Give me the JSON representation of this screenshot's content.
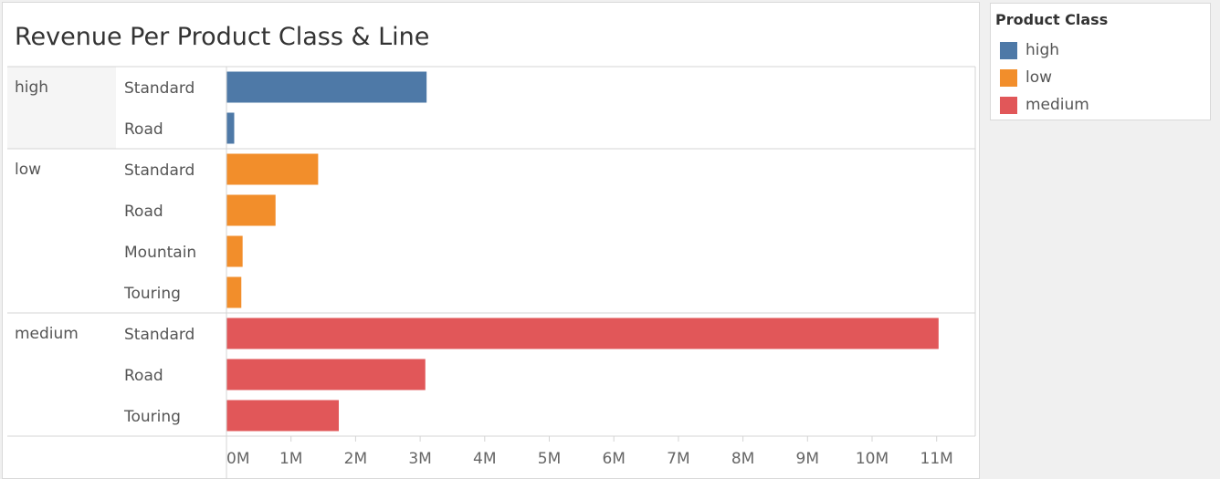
{
  "title": "Revenue Per Product Class & Line",
  "legend": {
    "title": "Product Class",
    "items": [
      {
        "label": "high",
        "color": "#4e79a7"
      },
      {
        "label": "low",
        "color": "#f28e2b"
      },
      {
        "label": "medium",
        "color": "#e15759"
      }
    ]
  },
  "chart_data": {
    "type": "bar",
    "orientation": "horizontal",
    "title": "Revenue Per Product Class & Line",
    "xlabel": "",
    "ylabel": "",
    "xlim": [
      0,
      11.5
    ],
    "x_unit_suffix": "M",
    "ticks": [
      "0M",
      "1M",
      "2M",
      "3M",
      "4M",
      "5M",
      "6M",
      "7M",
      "8M",
      "9M",
      "10M",
      "11M"
    ],
    "grid": false,
    "legend_position": "right",
    "groups": [
      {
        "name": "high",
        "color": "#4e79a7",
        "bars": [
          {
            "label": "Standard",
            "value": 3.1
          },
          {
            "label": "Road",
            "value": 0.12
          }
        ]
      },
      {
        "name": "low",
        "color": "#f28e2b",
        "bars": [
          {
            "label": "Standard",
            "value": 1.42
          },
          {
            "label": "Road",
            "value": 0.76
          },
          {
            "label": "Mountain",
            "value": 0.25
          },
          {
            "label": "Touring",
            "value": 0.23
          }
        ]
      },
      {
        "name": "medium",
        "color": "#e15759",
        "bars": [
          {
            "label": "Standard",
            "value": 11.03
          },
          {
            "label": "Road",
            "value": 3.08
          },
          {
            "label": "Touring",
            "value": 1.74
          }
        ]
      }
    ]
  }
}
